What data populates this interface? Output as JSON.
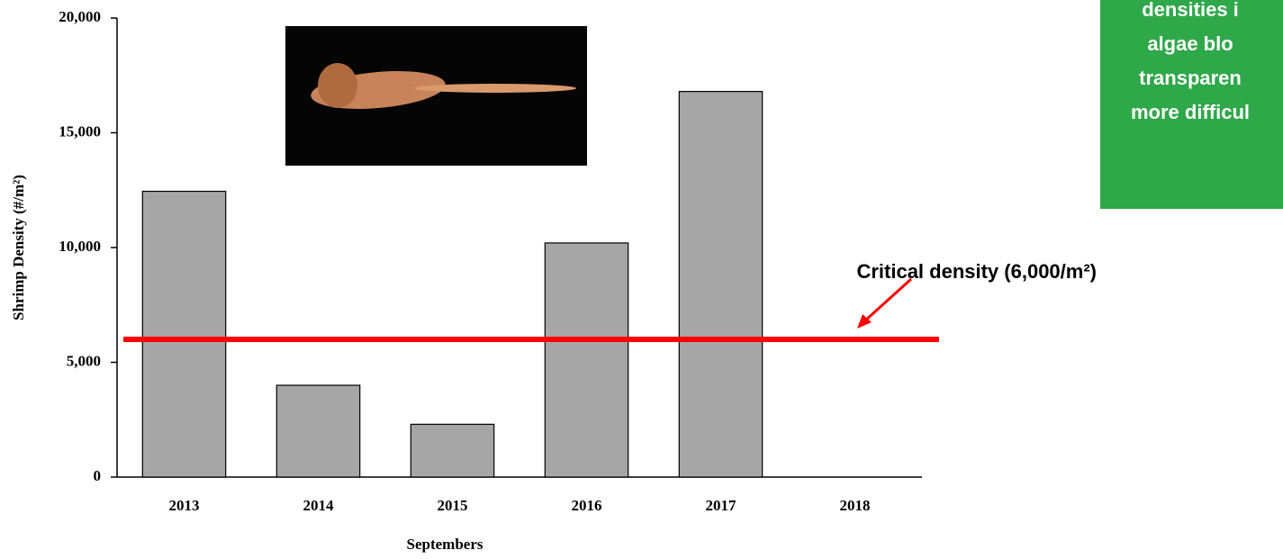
{
  "chart_data": {
    "type": "bar",
    "ylabel": "Shrimp Density (#/m²)",
    "xlabel": "Septembers",
    "categories": [
      "2013",
      "2014",
      "2015",
      "2016",
      "2017",
      "2018"
    ],
    "values": [
      12450,
      4000,
      2300,
      10200,
      16800,
      null
    ],
    "color": "#a6a6a6",
    "ylim": [
      0,
      20000
    ],
    "yticks": [
      0,
      {
        "value": 5000,
        "label": "5,000"
      },
      {
        "value": 10000,
        "label": "10,000"
      },
      {
        "value": 15000,
        "label": "15,000"
      },
      {
        "value": 20000,
        "label": "20,000"
      }
    ],
    "reference_line": {
      "value": 6000,
      "color": "#ff0000",
      "label": "Critical density (6,000/m²)"
    },
    "callout": {
      "color": "#2fa84a",
      "lines": [
        "densities i",
        "algae blo",
        "transparen",
        "more difficul"
      ]
    }
  }
}
